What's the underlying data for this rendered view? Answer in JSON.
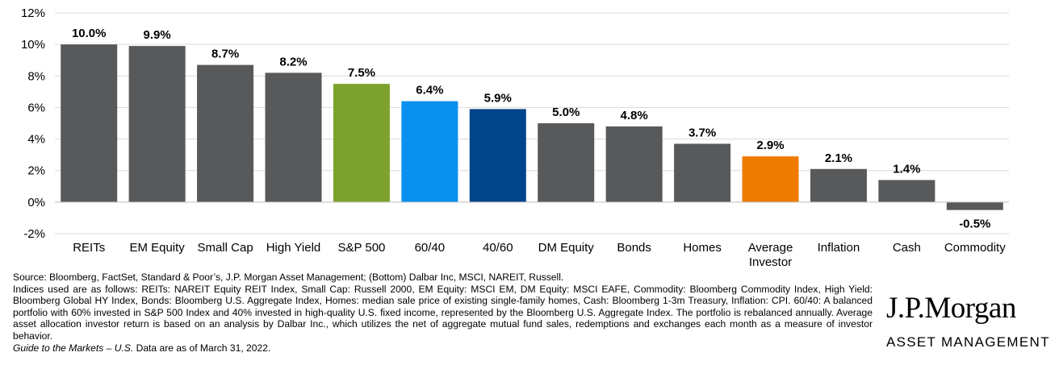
{
  "chart_data": {
    "type": "bar",
    "categories": [
      "REITs",
      "EM Equity",
      "Small Cap",
      "High Yield",
      "S&P 500",
      "60/40",
      "40/60",
      "DM Equity",
      "Bonds",
      "Homes",
      "Average Investor",
      "Inflation",
      "Cash",
      "Commodity"
    ],
    "category_lines": [
      [
        "REITs"
      ],
      [
        "EM Equity"
      ],
      [
        "Small Cap"
      ],
      [
        "High Yield"
      ],
      [
        "S&P 500"
      ],
      [
        "60/40"
      ],
      [
        "40/60"
      ],
      [
        "DM Equity"
      ],
      [
        "Bonds"
      ],
      [
        "Homes"
      ],
      [
        "Average",
        "Investor"
      ],
      [
        "Inflation"
      ],
      [
        "Cash"
      ],
      [
        "Commodity"
      ]
    ],
    "values": [
      10.0,
      9.9,
      8.7,
      8.2,
      7.5,
      6.4,
      5.9,
      5.0,
      4.8,
      3.7,
      2.9,
      2.1,
      1.4,
      -0.5
    ],
    "data_labels": [
      "10.0%",
      "9.9%",
      "8.7%",
      "8.2%",
      "7.5%",
      "6.4%",
      "5.9%",
      "5.0%",
      "4.8%",
      "3.7%",
      "2.9%",
      "2.1%",
      "1.4%",
      "-0.5%"
    ],
    "colors": [
      "#58595b",
      "#58595b",
      "#58595b",
      "#58595b",
      "#7da32e",
      "#0a91f0",
      "#004489",
      "#58595b",
      "#58595b",
      "#58595b",
      "#ef7a00",
      "#58595b",
      "#58595b",
      "#58595b"
    ],
    "ylim": [
      -2,
      12
    ],
    "yticks": [
      -2,
      0,
      2,
      4,
      6,
      8,
      10,
      12
    ],
    "ytick_labels": [
      "-2%",
      "0%",
      "2%",
      "4%",
      "6%",
      "8%",
      "10%",
      "12%"
    ],
    "grid": true,
    "title": "",
    "xlabel": "",
    "ylabel": ""
  },
  "notes": {
    "source": "Source: Bloomberg, FactSet, Standard & Poor’s, J.P. Morgan Asset Management; (Bottom) Dalbar Inc, MSCI, NAREIT, Russell.",
    "indices": "Indices used are as follows: REITs: NAREIT Equity REIT Index, Small Cap: Russell 2000, EM Equity: MSCI EM, DM Equity: MSCI EAFE, Commodity: Bloomberg Commodity Index, High Yield: Bloomberg Global HY Index, Bonds: Bloomberg U.S. Aggregate Index, Homes: median sale price of existing single-family homes, Cash: Bloomberg 1-3m Treasury, Inflation: CPI. 60/40: A balanced portfolio with 60% invested in S&P 500 Index and 40% invested in high-quality U.S. fixed income, represented by the Bloomberg U.S. Aggregate Index. The portfolio is rebalanced annually. Average asset allocation investor return is based on an analysis by Dalbar Inc., which utilizes the net of aggregate mutual fund sales, redemptions and exchanges each month as a measure of investor behavior.",
    "guide_title": "Guide to the Markets – U.S.",
    "data_date": " Data are as of March 31, 2022."
  },
  "logo": {
    "name": "J.P.Morgan",
    "subtitle": "ASSET MANAGEMENT"
  }
}
